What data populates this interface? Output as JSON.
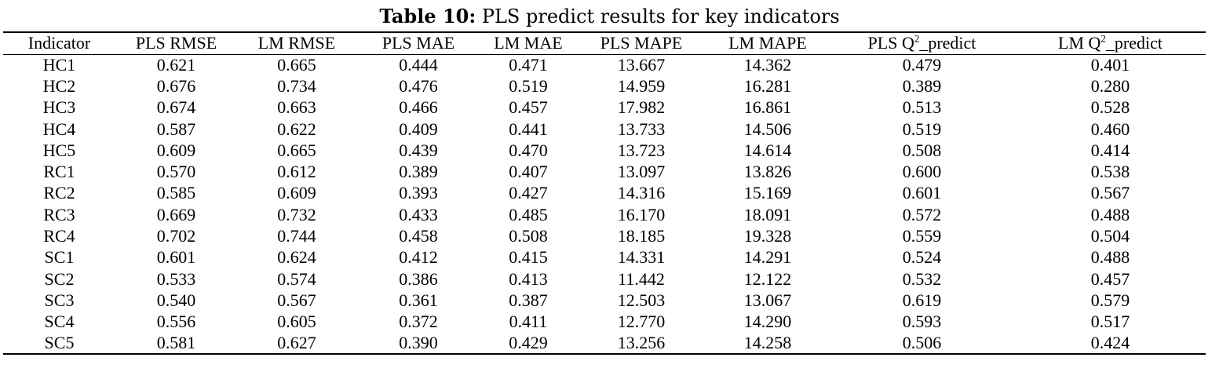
{
  "caption": {
    "label": "Table 10:",
    "text": " PLS predict results for key indicators"
  },
  "table": {
    "headers": [
      {
        "text": "Indicator"
      },
      {
        "text": "PLS RMSE"
      },
      {
        "text": "LM RMSE"
      },
      {
        "text": "PLS MAE"
      },
      {
        "text": "LM MAE"
      },
      {
        "text": "PLS MAPE"
      },
      {
        "text": "LM MAPE"
      },
      {
        "text": "PLS Q",
        "sup": "2",
        "after": "_predict"
      },
      {
        "text": "LM Q",
        "sup": "2",
        "after": "_predict"
      }
    ],
    "rows": [
      [
        "HC1",
        "0.621",
        "0.665",
        "0.444",
        "0.471",
        "13.667",
        "14.362",
        "0.479",
        "0.401"
      ],
      [
        "HC2",
        "0.676",
        "0.734",
        "0.476",
        "0.519",
        "14.959",
        "16.281",
        "0.389",
        "0.280"
      ],
      [
        "HC3",
        "0.674",
        "0.663",
        "0.466",
        "0.457",
        "17.982",
        "16.861",
        "0.513",
        "0.528"
      ],
      [
        "HC4",
        "0.587",
        "0.622",
        "0.409",
        "0.441",
        "13.733",
        "14.506",
        "0.519",
        "0.460"
      ],
      [
        "HC5",
        "0.609",
        "0.665",
        "0.439",
        "0.470",
        "13.723",
        "14.614",
        "0.508",
        "0.414"
      ],
      [
        "RC1",
        "0.570",
        "0.612",
        "0.389",
        "0.407",
        "13.097",
        "13.826",
        "0.600",
        "0.538"
      ],
      [
        "RC2",
        "0.585",
        "0.609",
        "0.393",
        "0.427",
        "14.316",
        "15.169",
        "0.601",
        "0.567"
      ],
      [
        "RC3",
        "0.669",
        "0.732",
        "0.433",
        "0.485",
        "16.170",
        "18.091",
        "0.572",
        "0.488"
      ],
      [
        "RC4",
        "0.702",
        "0.744",
        "0.458",
        "0.508",
        "18.185",
        "19.328",
        "0.559",
        "0.504"
      ],
      [
        "SC1",
        "0.601",
        "0.624",
        "0.412",
        "0.415",
        "14.331",
        "14.291",
        "0.524",
        "0.488"
      ],
      [
        "SC2",
        "0.533",
        "0.574",
        "0.386",
        "0.413",
        "11.442",
        "12.122",
        "0.532",
        "0.457"
      ],
      [
        "SC3",
        "0.540",
        "0.567",
        "0.361",
        "0.387",
        "12.503",
        "13.067",
        "0.619",
        "0.579"
      ],
      [
        "SC4",
        "0.556",
        "0.605",
        "0.372",
        "0.411",
        "12.770",
        "14.290",
        "0.593",
        "0.517"
      ],
      [
        "SC5",
        "0.581",
        "0.627",
        "0.390",
        "0.429",
        "13.256",
        "14.258",
        "0.506",
        "0.424"
      ]
    ]
  }
}
